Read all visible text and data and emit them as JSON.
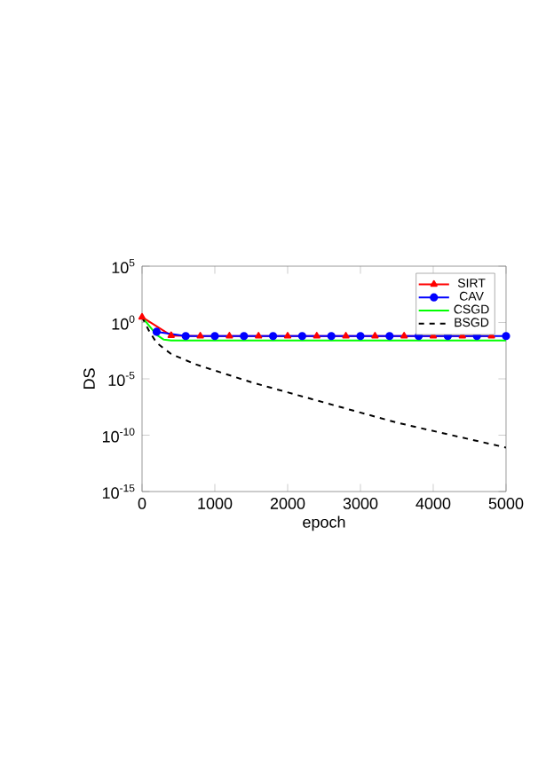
{
  "chart_data": {
    "type": "line",
    "xlabel": "epoch",
    "ylabel": "DS",
    "log": "y",
    "xlim": [
      0,
      5000
    ],
    "xticks": [
      0,
      1000,
      2000,
      3000,
      4000,
      5000
    ],
    "ylim": [
      1e-15,
      100000.0
    ],
    "yticks": [
      {
        "value": 1e-15,
        "label": "10$^{-15}$"
      },
      {
        "value": 1e-10,
        "label": "10$^{-10}$"
      },
      {
        "value": 1e-05,
        "label": "10$^{-5}$"
      },
      {
        "value": 1,
        "label": "10$^{0}$"
      },
      {
        "value": 100000.0,
        "label": "10$^{5}$"
      }
    ],
    "legend": "top right",
    "grid": false,
    "series": [
      {
        "name": "SIRT",
        "color": "#ff0000",
        "marker": "triangle",
        "line_style": "solid",
        "x": [
          0,
          400,
          800,
          1200,
          1600,
          2000,
          2400,
          2800,
          3200,
          3600,
          4000,
          4400,
          4800
        ],
        "values": [
          3,
          0.07,
          0.063,
          0.063,
          0.063,
          0.063,
          0.063,
          0.063,
          0.063,
          0.063,
          0.063,
          0.063,
          0.063
        ]
      },
      {
        "name": "CAV",
        "color": "#0000ff",
        "marker": "circle",
        "line_style": "solid",
        "x": [
          200,
          600,
          1000,
          1400,
          1800,
          2200,
          2600,
          3000,
          3400,
          3800,
          4200,
          4600,
          5000
        ],
        "values": [
          0.15,
          0.063,
          0.063,
          0.063,
          0.063,
          0.063,
          0.063,
          0.063,
          0.063,
          0.063,
          0.063,
          0.063,
          0.063
        ]
      },
      {
        "name": "CSGD",
        "color": "#00ff00",
        "marker": "none",
        "line_style": "solid",
        "x": [
          0,
          100,
          200,
          300,
          400,
          5000
        ],
        "values": [
          3,
          0.5,
          0.08,
          0.03,
          0.025,
          0.025
        ]
      },
      {
        "name": "BSGD",
        "color": "#000000",
        "marker": "none",
        "line_style": "dashed",
        "x": [
          0,
          100,
          200,
          400,
          730,
          1500,
          2500,
          3500,
          5000
        ],
        "values": [
          3,
          0.16,
          0.016,
          0.0016,
          0.0002,
          5e-06,
          8e-08,
          1.3e-09,
          8e-12
        ]
      }
    ]
  }
}
